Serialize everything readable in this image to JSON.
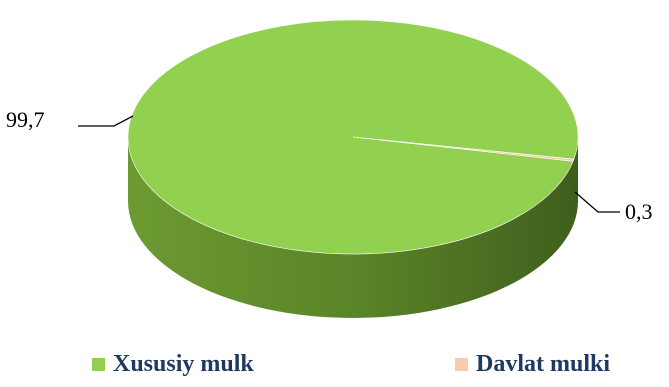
{
  "chart_data": {
    "type": "pie",
    "three_d": true,
    "title": "",
    "categories": [
      "Xususiy mulk",
      "Davlat mulki"
    ],
    "values": [
      99.7,
      0.3
    ],
    "data_labels": [
      "99,7",
      "0,3"
    ],
    "colors": [
      "#92d050",
      "#f8cbad"
    ],
    "legend_position": "bottom"
  },
  "legend": {
    "items": [
      {
        "label": "Xususiy mulk",
        "color": "#92d050"
      },
      {
        "label": "Davlat mulki",
        "color": "#f8cbad"
      }
    ]
  }
}
